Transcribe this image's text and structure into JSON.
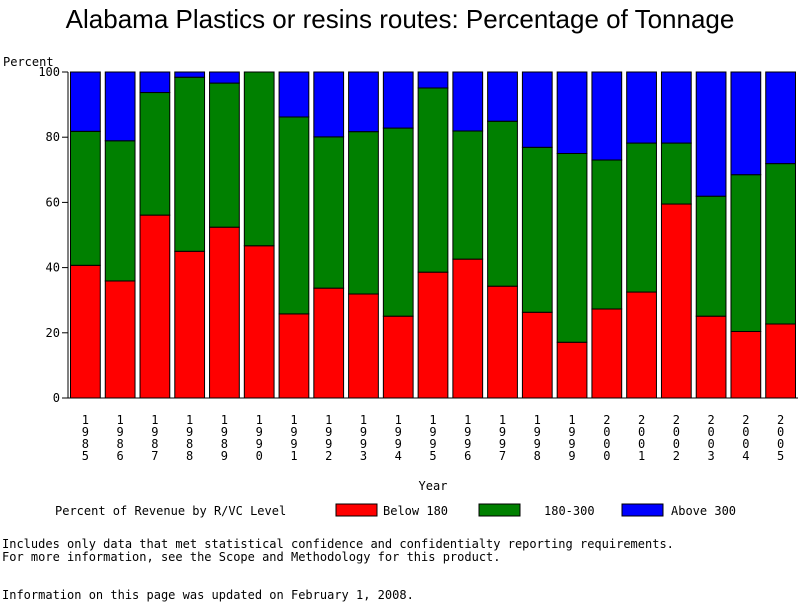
{
  "chart_data": {
    "type": "bar",
    "stacked": true,
    "title": "Alabama Plastics or resins routes: Percentage of Tonnage",
    "ylabel": "Percent",
    "xlabel": "Year",
    "ylim": [
      0,
      100
    ],
    "yticks": [
      "0",
      "20",
      "40",
      "60",
      "80",
      "100"
    ],
    "categories": [
      "1985",
      "1986",
      "1987",
      "1988",
      "1989",
      "1990",
      "1991",
      "1992",
      "1993",
      "1994",
      "1995",
      "1996",
      "1997",
      "1998",
      "1999",
      "2000",
      "2001",
      "2002",
      "2003",
      "2004",
      "2005"
    ],
    "legend_title": "Percent of Revenue by R/VC Level",
    "series": [
      {
        "name": "Below 180",
        "color": "#ff0000",
        "values": [
          40.7,
          35.9,
          56.1,
          45.0,
          52.4,
          46.7,
          25.8,
          33.7,
          31.9,
          25.1,
          38.6,
          42.6,
          34.3,
          26.3,
          17.1,
          27.3,
          32.5,
          59.5,
          25.1,
          20.4,
          22.7
        ]
      },
      {
        "name": "180-300",
        "color": "#008000",
        "values": [
          41.1,
          43.0,
          37.6,
          53.4,
          44.2,
          53.3,
          60.4,
          46.4,
          49.8,
          57.7,
          56.5,
          39.3,
          50.6,
          50.6,
          57.9,
          45.7,
          45.7,
          18.7,
          36.8,
          48.1,
          49.2
        ]
      },
      {
        "name": "Above 300",
        "color": "#0000ff",
        "values": [
          18.2,
          21.1,
          6.3,
          1.6,
          3.4,
          0.0,
          13.8,
          19.9,
          18.3,
          17.2,
          4.9,
          18.1,
          15.1,
          23.1,
          25.0,
          27.0,
          21.8,
          21.8,
          38.1,
          31.5,
          28.1
        ]
      }
    ]
  },
  "notes": {
    "line1": "Includes only data that met statistical confidence and confidentialty reporting requirements.",
    "line2": "For more information, see the Scope and Methodology for this product.",
    "line3": "Information on this page was updated on February 1, 2008."
  }
}
